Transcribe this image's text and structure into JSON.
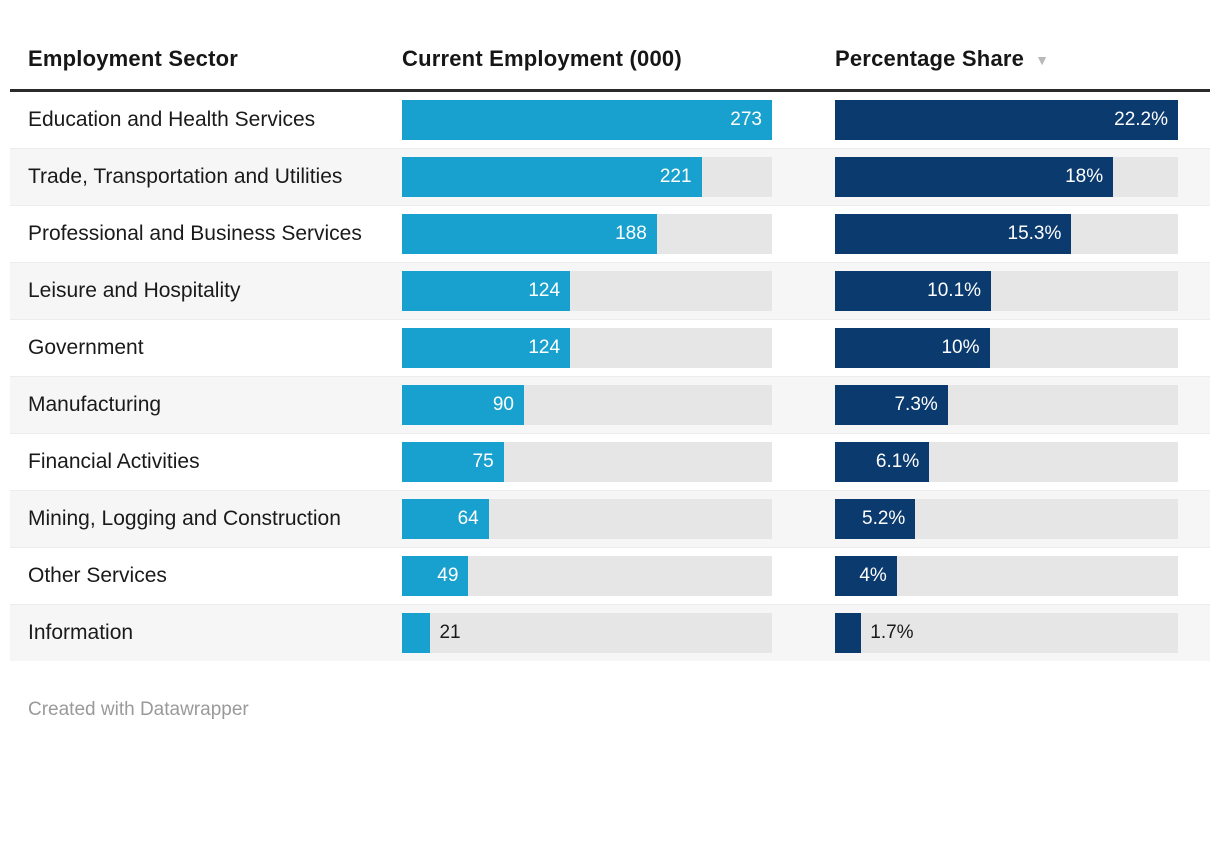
{
  "header": {
    "columns": [
      {
        "id": "sector",
        "label": "Employment Sector"
      },
      {
        "id": "employment",
        "label": "Current Employment (000)"
      },
      {
        "id": "share",
        "label": "Percentage Share",
        "sort_icon": "▼",
        "sort_direction": "descending"
      }
    ]
  },
  "rows": [
    {
      "sector": "Education and Health Services",
      "employment": 273,
      "employment_label": "273",
      "share": 22.2,
      "share_label": "22.2%"
    },
    {
      "sector": "Trade, Transportation and Utilities",
      "employment": 221,
      "employment_label": "221",
      "share": 18,
      "share_label": "18%"
    },
    {
      "sector": "Professional and Business Services",
      "employment": 188,
      "employment_label": "188",
      "share": 15.3,
      "share_label": "15.3%"
    },
    {
      "sector": "Leisure and Hospitality",
      "employment": 124,
      "employment_label": "124",
      "share": 10.1,
      "share_label": "10.1%"
    },
    {
      "sector": "Government",
      "employment": 124,
      "employment_label": "124",
      "share": 10,
      "share_label": "10%"
    },
    {
      "sector": "Manufacturing",
      "employment": 90,
      "employment_label": "90",
      "share": 7.3,
      "share_label": "7.3%"
    },
    {
      "sector": "Financial Activities",
      "employment": 75,
      "employment_label": "75",
      "share": 6.1,
      "share_label": "6.1%"
    },
    {
      "sector": "Mining, Logging and Construction",
      "employment": 64,
      "employment_label": "64",
      "share": 5.2,
      "share_label": "5.2%"
    },
    {
      "sector": "Other Services",
      "employment": 49,
      "employment_label": "49",
      "share": 4,
      "share_label": "4%"
    },
    {
      "sector": "Information",
      "employment": 21,
      "employment_label": "21",
      "share": 1.7,
      "share_label": "1.7%"
    }
  ],
  "footer": {
    "credit": "Created with Datawrapper"
  },
  "colors": {
    "employment_bar": "#18a1ce",
    "share_bar": "#0b3a6e",
    "bar_track": "#e6e6e6",
    "row_alt_background": "#f6f6f6",
    "header_rule": "#2b2b2b",
    "credit_text": "#9a9a9a",
    "sort_icon": "#b8b8b8"
  },
  "chart_data": {
    "type": "table",
    "title": "",
    "columns": [
      "Employment Sector",
      "Current Employment (000)",
      "Percentage Share"
    ],
    "categories": [
      "Education and Health Services",
      "Trade, Transportation and Utilities",
      "Professional and Business Services",
      "Leisure and Hospitality",
      "Government",
      "Manufacturing",
      "Financial Activities",
      "Mining, Logging and Construction",
      "Other Services",
      "Information"
    ],
    "series": [
      {
        "name": "Current Employment (000)",
        "render": "bar",
        "values": [
          273,
          221,
          188,
          124,
          124,
          90,
          75,
          64,
          49,
          21
        ],
        "axis_max": 273
      },
      {
        "name": "Percentage Share",
        "render": "bar",
        "values": [
          22.2,
          18,
          15.3,
          10.1,
          10,
          7.3,
          6.1,
          5.2,
          4,
          1.7
        ],
        "unit": "%",
        "axis_max": 22.2
      }
    ],
    "sorted_by": "Percentage Share",
    "sort_direction": "desc",
    "legend_position": "none",
    "grid": false
  }
}
